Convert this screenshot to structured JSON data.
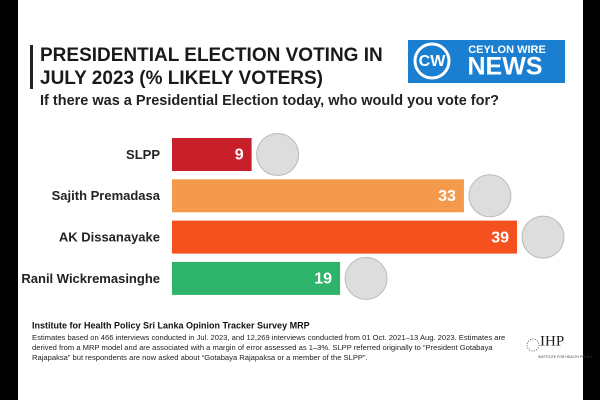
{
  "chart_data": {
    "type": "bar",
    "orientation": "horizontal",
    "title": [
      "PRESIDENTIAL ELECTION VOTING IN",
      "JULY 2023 (% LIKELY VOTERS)"
    ],
    "subtitle": "If there was a Presidential Election today, who would you vote for?",
    "categories": [
      "SLPP",
      "Sajith Premadasa",
      "AK Dissanayake",
      "Ranil Wickremasinghe"
    ],
    "values": [
      9,
      33,
      39,
      19
    ],
    "colors": [
      "#c8202a",
      "#f39a4c",
      "#f4511e",
      "#2db36a"
    ],
    "source": "Institute for Health Policy Sri Lanka Opinion Tracker Survey MRP",
    "notes": [
      "Estimates based on 466 interviews conducted in Jul. 2023, and 12,269 interviews conducted from 01 Oct. 2021–13 Aug. 2023. Estimates are",
      "derived from a MRP model and are associated with a margin of error assessed as 1–3%. SLPP referred originally to “President Gotabaya",
      "Rajapaksa” but respondents are now asked about “Gotabaya Rajapaksa or a member of the SLPP”."
    ],
    "logo": {
      "top": "CEYLON WIRE",
      "bottom": "NEWS",
      "mark": "CW"
    },
    "ihp_logo": {
      "mark": "IHP",
      "text": "INSTITUTE FOR HEALTH POLICY"
    }
  }
}
